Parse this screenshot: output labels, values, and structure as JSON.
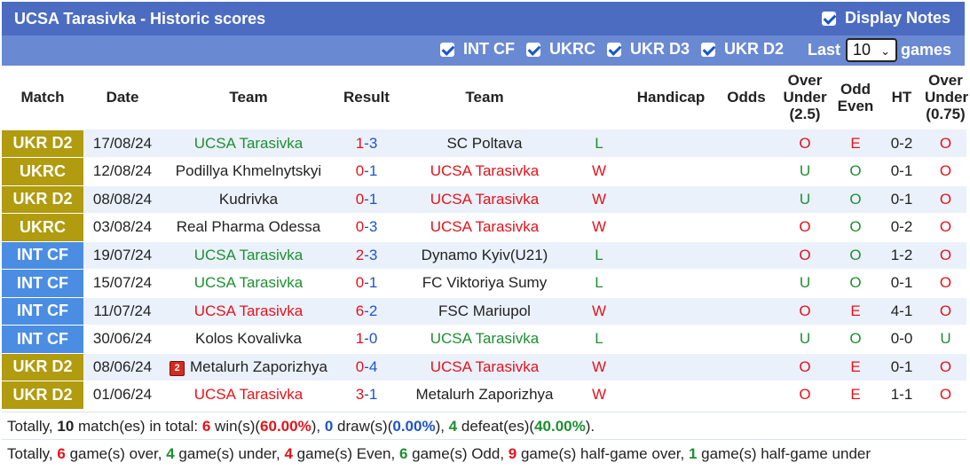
{
  "header": {
    "title": "UCSA Tarasivka - Historic scores",
    "display_notes_label": "Display Notes"
  },
  "filters": {
    "items": [
      {
        "label": "INT CF",
        "checked": true
      },
      {
        "label": "UKRC",
        "checked": true
      },
      {
        "label": "UKR D3",
        "checked": true
      },
      {
        "label": "UKR D2",
        "checked": true
      }
    ],
    "last_label": "Last",
    "last_value": "10",
    "games_label": "games"
  },
  "columns": {
    "match": "Match",
    "date": "Date",
    "team_home": "Team",
    "result": "Result",
    "team_away": "Team",
    "handicap": "Handicap",
    "odds": "Odds",
    "over_under_line1": "Over",
    "over_under_line2": "Under",
    "over_under_line3": "(2.5)",
    "odd_even_line1": "Odd",
    "odd_even_line2": "Even",
    "ht": "HT",
    "ou2_line1": "Over",
    "ou2_line2": "Under",
    "ou2_line3": "(0.75)"
  },
  "rows": [
    {
      "comp": "UKR D2",
      "date": "17/08/24",
      "home": "UCSA Tarasivka",
      "hs": "1",
      "as": "3",
      "away": "SC Poltava",
      "wl": "L",
      "ou": "O",
      "oe": "E",
      "ht": "0-2",
      "ou2": "O"
    },
    {
      "comp": "UKRC",
      "date": "12/08/24",
      "home": "Podillya Khmelnytskyi",
      "hs": "0",
      "as": "1",
      "away": "UCSA Tarasivka",
      "wl": "W",
      "ou": "U",
      "oe": "O",
      "ht": "0-1",
      "ou2": "O"
    },
    {
      "comp": "UKR D2",
      "date": "08/08/24",
      "home": "Kudrivka",
      "hs": "0",
      "as": "1",
      "away": "UCSA Tarasivka",
      "wl": "W",
      "ou": "U",
      "oe": "O",
      "ht": "0-1",
      "ou2": "O"
    },
    {
      "comp": "UKRC",
      "date": "03/08/24",
      "home": "Real Pharma Odessa",
      "hs": "0",
      "as": "3",
      "away": "UCSA Tarasivka",
      "wl": "W",
      "ou": "O",
      "oe": "O",
      "ht": "0-2",
      "ou2": "O"
    },
    {
      "comp": "INT CF",
      "date": "19/07/24",
      "home": "UCSA Tarasivka",
      "hs": "2",
      "as": "3",
      "away": "Dynamo Kyiv(U21)",
      "wl": "L",
      "ou": "O",
      "oe": "O",
      "ht": "1-2",
      "ou2": "O"
    },
    {
      "comp": "INT CF",
      "date": "15/07/24",
      "home": "UCSA Tarasivka",
      "hs": "0",
      "as": "1",
      "away": "FC Viktoriya Sumy",
      "wl": "L",
      "ou": "U",
      "oe": "O",
      "ht": "0-1",
      "ou2": "O"
    },
    {
      "comp": "INT CF",
      "date": "11/07/24",
      "home": "UCSA Tarasivka",
      "hs": "6",
      "as": "2",
      "away": "FSC Mariupol",
      "wl": "W",
      "ou": "O",
      "oe": "E",
      "ht": "4-1",
      "ou2": "O"
    },
    {
      "comp": "INT CF",
      "date": "30/06/24",
      "home": "Kolos Kovalivka",
      "hs": "1",
      "as": "0",
      "away": "UCSA Tarasivka",
      "wl": "L",
      "ou": "U",
      "oe": "O",
      "ht": "0-0",
      "ou2": "U"
    },
    {
      "comp": "UKR D2",
      "date": "08/06/24",
      "home": "Metalurh Zaporizhya",
      "home_badge": "2",
      "hs": "0",
      "as": "4",
      "away": "UCSA Tarasivka",
      "wl": "W",
      "ou": "O",
      "oe": "E",
      "ht": "0-1",
      "ou2": "O"
    },
    {
      "comp": "UKR D2",
      "date": "01/06/24",
      "home": "UCSA Tarasivka",
      "hs": "3",
      "as": "1",
      "away": "Metalurh Zaporizhya",
      "wl": "W",
      "ou": "O",
      "oe": "E",
      "ht": "1-1",
      "ou2": "O"
    }
  ],
  "summary1": {
    "p1": "Totally, ",
    "matches": "10",
    "p2": " match(es) in total: ",
    "wins": "6",
    "p3": " win(s)(",
    "win_pct": "60.00%",
    "p4": "), ",
    "draws": "0",
    "p5": " draw(s)(",
    "draw_pct": "0.00%",
    "p6": "), ",
    "defeats": "4",
    "p7": " defeat(es)(",
    "defeat_pct": "40.00%",
    "p8": ")."
  },
  "summary2": {
    "p1": "Totally, ",
    "over": "6",
    "p2": " game(s) over, ",
    "under": "4",
    "p3": " game(s) under, ",
    "even": "4",
    "p4": " game(s) Even, ",
    "odd": "6",
    "p5": " game(s) Odd, ",
    "hg_over": "9",
    "p6": " game(s) half-game over, ",
    "hg_under": "1",
    "p7": " game(s) half-game under"
  },
  "colors": {
    "title_bar": "#4c6cc2",
    "filter_bar": "#6a89d3",
    "ukr_comp": "#b19b0e",
    "int_comp": "#4b8de2",
    "win_red": "#e5121a",
    "loss_green": "#1d8f31",
    "score_blue": "#1d55c9"
  },
  "icons": {
    "checkbox": "checkbox-checked-icon",
    "red_card": "red-card-icon",
    "dropdown": "chevron-down-icon"
  }
}
